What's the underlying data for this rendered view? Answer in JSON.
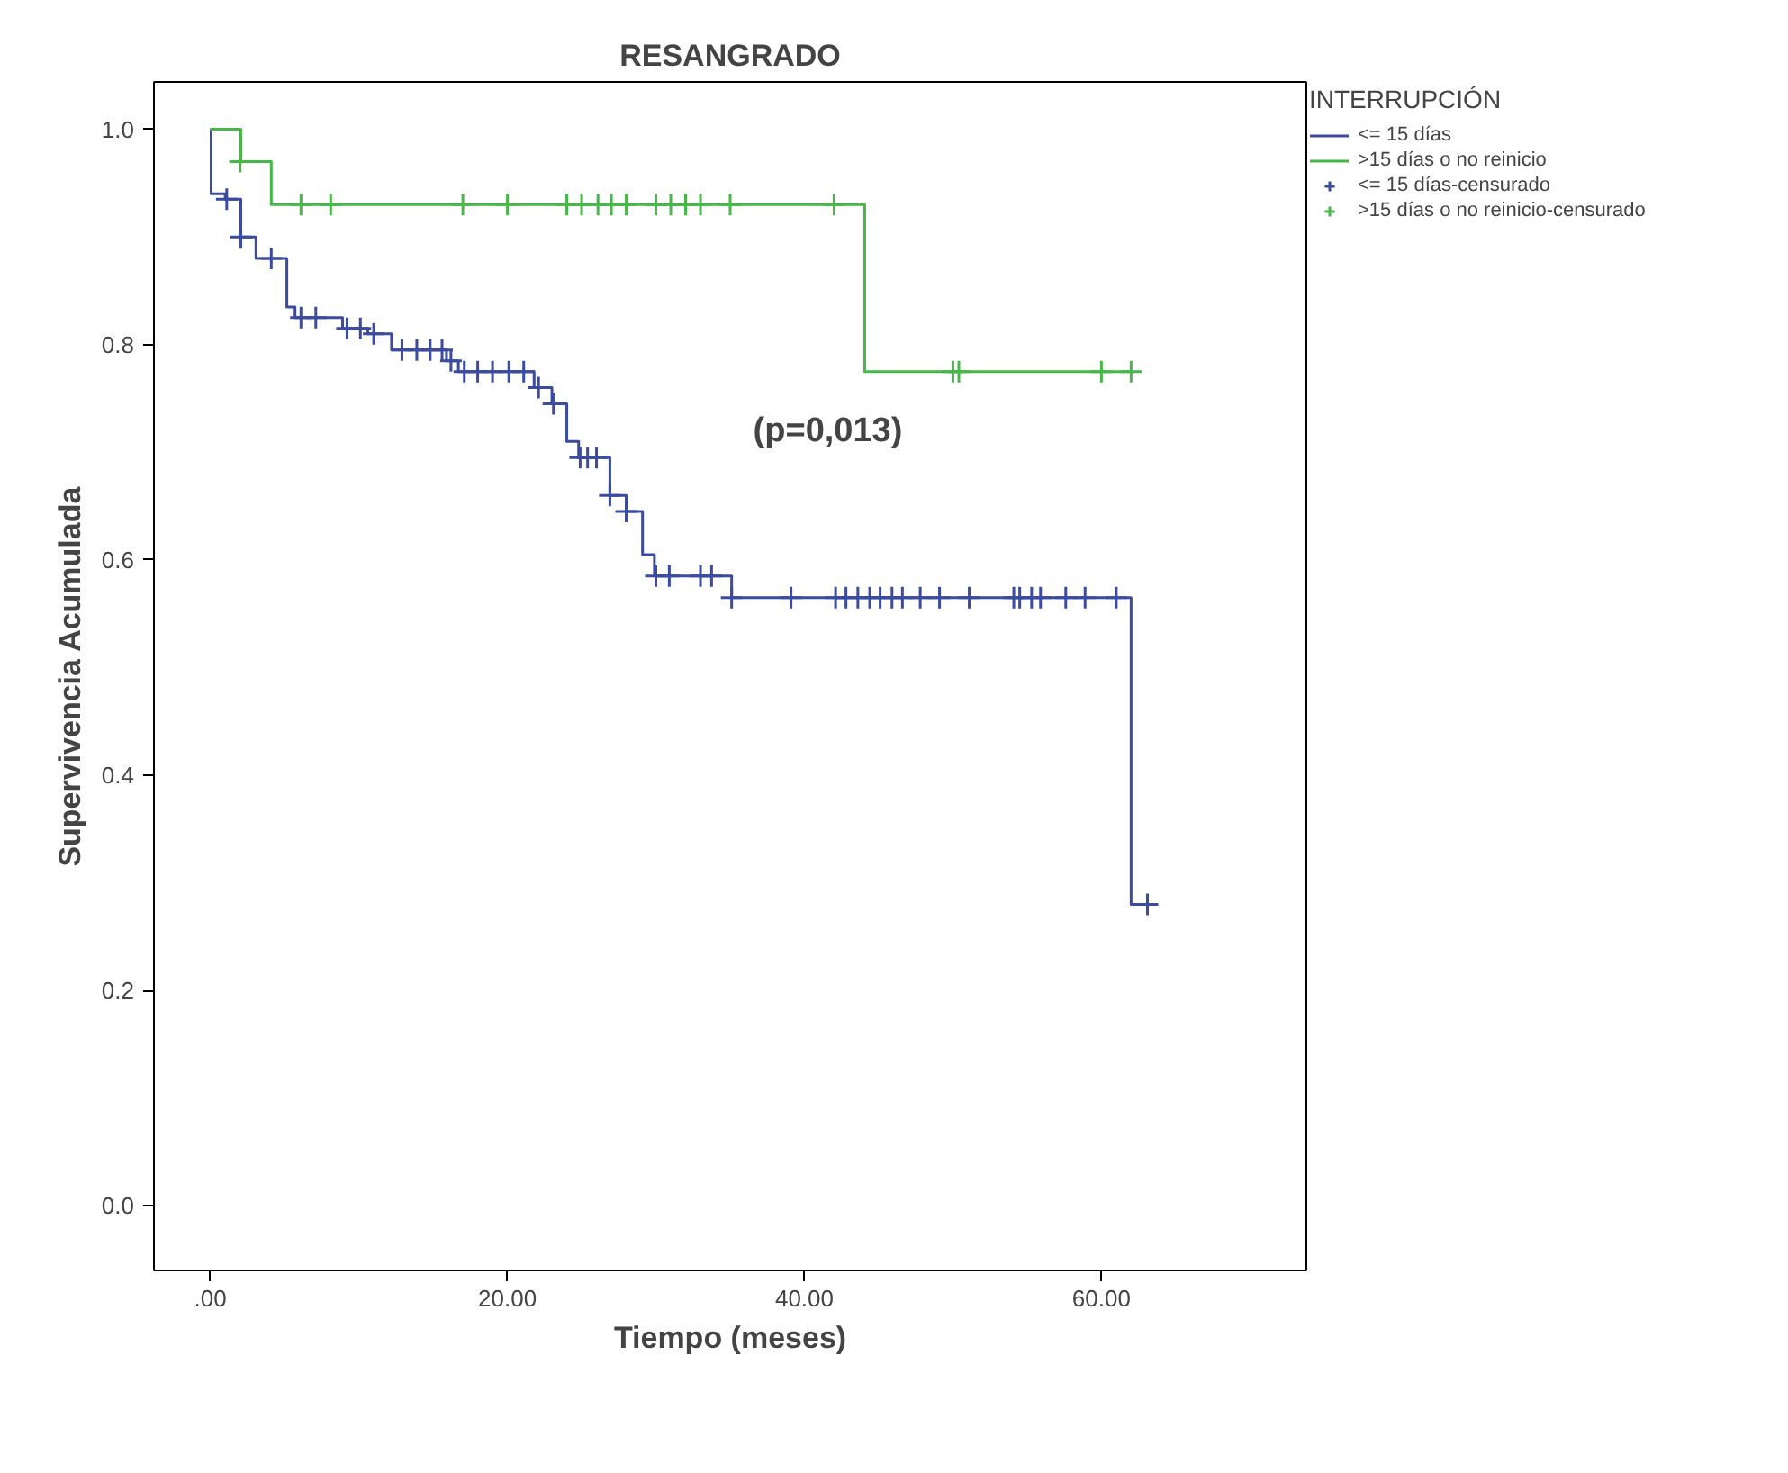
{
  "chart_data": {
    "type": "step",
    "title": "RESANGRADO",
    "xlabel": "Tiempo (meses)",
    "ylabel": "Supervivencia Acumulada",
    "legend_title": "INTERRUPCIÓN",
    "legend": "top right",
    "grid": false,
    "xlim": [
      -3.8,
      73.8
    ],
    "ylim": [
      -0.06,
      1.044
    ],
    "xticks": [
      {
        "value": 0,
        "label": ".00"
      },
      {
        "value": 20,
        "label": "20.00"
      },
      {
        "value": 40,
        "label": "40.00"
      },
      {
        "value": 60,
        "label": "60.00"
      }
    ],
    "yticks": [
      {
        "value": 0,
        "label": "0.0"
      },
      {
        "value": 0.2,
        "label": "0.2"
      },
      {
        "value": 0.4,
        "label": "0.4"
      },
      {
        "value": 0.6,
        "label": "0.6"
      },
      {
        "value": 0.8,
        "label": "0.8"
      },
      {
        "value": 1.0,
        "label": "1.0"
      }
    ],
    "annotations": [
      "(p=0,013)"
    ],
    "series": [
      {
        "name": "<= 15 días",
        "marker": "none",
        "color": "#3b4ba0",
        "x": [
          0,
          0.05,
          1.0,
          2.05,
          3.07,
          5.15,
          5.7,
          8.9,
          10.6,
          12.2,
          15.9,
          16.7,
          21.8,
          23.0,
          24.0,
          24.8,
          26.9,
          28.0,
          29.1,
          29.9,
          35.1,
          62.0,
          63.1
        ],
        "values": [
          1.0,
          0.94,
          0.935,
          0.9,
          0.88,
          0.835,
          0.825,
          0.815,
          0.81,
          0.795,
          0.785,
          0.775,
          0.76,
          0.745,
          0.71,
          0.695,
          0.66,
          0.645,
          0.605,
          0.585,
          0.565,
          0.28,
          0.28
        ]
      },
      {
        "name": ">15 días o no reinicio",
        "marker": "none",
        "color": "#47b847",
        "x": [
          0,
          2.05,
          4.1,
          44.06,
          62.0
        ],
        "values": [
          1.0,
          0.97,
          0.93,
          0.775,
          0.775
        ]
      },
      {
        "name": "<= 15 días-censurado",
        "type": "scatter",
        "marker": "cross",
        "color": "#3b4ba0",
        "x": [
          1.1,
          2.05,
          4.1,
          6.1,
          7.1,
          9.2,
          10.1,
          11.0,
          12.9,
          13.9,
          14.8,
          15.6,
          16.2,
          17.1,
          18.0,
          19.0,
          20.1,
          21.1,
          22.1,
          23.1,
          24.9,
          25.4,
          26.0,
          26.9,
          28.0,
          30.0,
          30.9,
          33.0,
          33.75,
          35.1,
          39.1,
          42.1,
          42.8,
          43.6,
          44.4,
          45.1,
          45.9,
          46.6,
          47.8,
          49.1,
          51.1,
          54.1,
          54.5,
          55.3,
          55.9,
          57.6,
          58.9,
          61.0,
          63.1
        ],
        "values": [
          0.935,
          0.9,
          0.88,
          0.825,
          0.825,
          0.815,
          0.815,
          0.81,
          0.795,
          0.795,
          0.795,
          0.795,
          0.785,
          0.775,
          0.775,
          0.775,
          0.775,
          0.775,
          0.76,
          0.745,
          0.695,
          0.695,
          0.695,
          0.66,
          0.645,
          0.585,
          0.585,
          0.585,
          0.585,
          0.565,
          0.565,
          0.565,
          0.565,
          0.565,
          0.565,
          0.565,
          0.565,
          0.565,
          0.565,
          0.565,
          0.565,
          0.565,
          0.565,
          0.565,
          0.565,
          0.565,
          0.565,
          0.565,
          0.28
        ]
      },
      {
        "name": ">15 días o no reinicio-censurado",
        "type": "scatter",
        "marker": "cross",
        "color": "#47b847",
        "x": [
          2.0,
          6.1,
          8.1,
          17.0,
          20.0,
          24.0,
          25.0,
          26.1,
          27.0,
          28.0,
          30.0,
          31.0,
          32.0,
          33.0,
          35.0,
          42.0,
          50.0,
          50.4,
          60.0,
          62.0
        ],
        "values": [
          0.97,
          0.93,
          0.93,
          0.93,
          0.93,
          0.93,
          0.93,
          0.93,
          0.93,
          0.93,
          0.93,
          0.93,
          0.93,
          0.93,
          0.93,
          0.93,
          0.775,
          0.775,
          0.775,
          0.775
        ]
      }
    ]
  }
}
